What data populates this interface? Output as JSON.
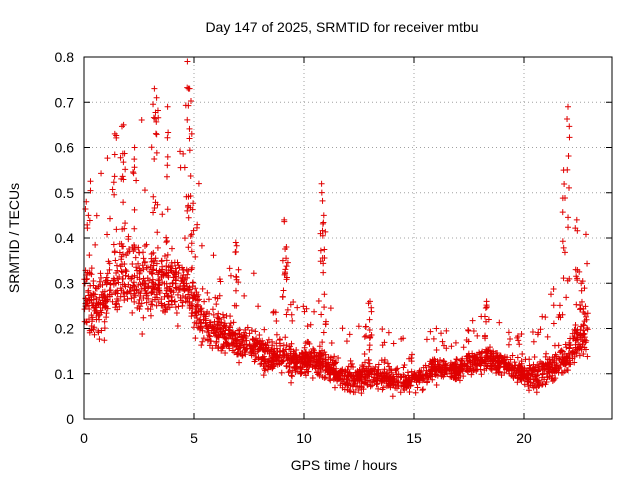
{
  "chart_data": {
    "type": "scatter",
    "title": "Day 147 of 2025, SRMTID for receiver mtbu",
    "xlabel": "GPS time / hours",
    "ylabel": "SRMTID / TECUs",
    "xlim": [
      0,
      24
    ],
    "ylim": [
      0,
      0.8
    ],
    "x_ticks": [
      0,
      5,
      10,
      15,
      20
    ],
    "x_tick_labels": [
      "0",
      "5",
      "10",
      "15",
      "20"
    ],
    "y_ticks": [
      0,
      0.1,
      0.2,
      0.3,
      0.4,
      0.5,
      0.6,
      0.7,
      0.8
    ],
    "y_tick_labels": [
      "0",
      "0.1",
      "0.2",
      "0.3",
      "0.4",
      "0.5",
      "0.6",
      "0.7",
      "0.8"
    ],
    "grid": true,
    "marker": "plus",
    "color": "#e00000",
    "series": [
      {
        "name": "SRMTID",
        "envelope": [
          [
            0.0,
            0.28
          ],
          [
            0.5,
            0.24
          ],
          [
            1.0,
            0.27
          ],
          [
            1.5,
            0.32
          ],
          [
            2.0,
            0.33
          ],
          [
            2.5,
            0.3
          ],
          [
            3.0,
            0.3
          ],
          [
            3.5,
            0.31
          ],
          [
            4.0,
            0.3
          ],
          [
            4.5,
            0.29
          ],
          [
            5.0,
            0.26
          ],
          [
            5.5,
            0.21
          ],
          [
            6.0,
            0.2
          ],
          [
            6.5,
            0.19
          ],
          [
            7.0,
            0.17
          ],
          [
            7.5,
            0.16
          ],
          [
            8.0,
            0.15
          ],
          [
            8.5,
            0.14
          ],
          [
            9.0,
            0.14
          ],
          [
            9.5,
            0.13
          ],
          [
            10.0,
            0.13
          ],
          [
            10.5,
            0.13
          ],
          [
            11.0,
            0.12
          ],
          [
            11.5,
            0.1
          ],
          [
            12.0,
            0.09
          ],
          [
            12.5,
            0.09
          ],
          [
            13.0,
            0.1
          ],
          [
            13.5,
            0.09
          ],
          [
            14.0,
            0.09
          ],
          [
            14.5,
            0.08
          ],
          [
            15.0,
            0.09
          ],
          [
            15.5,
            0.1
          ],
          [
            16.0,
            0.11
          ],
          [
            16.5,
            0.11
          ],
          [
            17.0,
            0.11
          ],
          [
            17.5,
            0.12
          ],
          [
            18.0,
            0.13
          ],
          [
            18.5,
            0.13
          ],
          [
            19.0,
            0.12
          ],
          [
            19.5,
            0.11
          ],
          [
            20.0,
            0.1
          ],
          [
            20.5,
            0.09
          ],
          [
            21.0,
            0.11
          ],
          [
            21.5,
            0.12
          ],
          [
            22.0,
            0.14
          ],
          [
            22.5,
            0.18
          ],
          [
            22.9,
            0.2
          ]
        ],
        "spread": [
          [
            0.0,
            0.1
          ],
          [
            2.0,
            0.14
          ],
          [
            5.0,
            0.1
          ],
          [
            7.0,
            0.06
          ],
          [
            11.0,
            0.05
          ],
          [
            15.0,
            0.04
          ],
          [
            20.0,
            0.04
          ],
          [
            22.9,
            0.08
          ]
        ],
        "coverage_hours": [
          0.0,
          22.9
        ],
        "peaks": [
          {
            "x": 0.2,
            "y": 0.45
          },
          {
            "x": 1.4,
            "y": 0.63
          },
          {
            "x": 1.8,
            "y": 0.65
          },
          {
            "x": 2.3,
            "y": 0.6
          },
          {
            "x": 3.2,
            "y": 0.73
          },
          {
            "x": 3.3,
            "y": 0.71
          },
          {
            "x": 3.8,
            "y": 0.69
          },
          {
            "x": 4.7,
            "y": 0.79
          },
          {
            "x": 4.8,
            "y": 0.73
          },
          {
            "x": 4.9,
            "y": 0.63
          },
          {
            "x": 6.9,
            "y": 0.39
          },
          {
            "x": 9.1,
            "y": 0.44
          },
          {
            "x": 9.2,
            "y": 0.38
          },
          {
            "x": 10.8,
            "y": 0.52
          },
          {
            "x": 10.9,
            "y": 0.45
          },
          {
            "x": 13.0,
            "y": 0.26
          },
          {
            "x": 18.3,
            "y": 0.26
          },
          {
            "x": 21.8,
            "y": 0.55
          },
          {
            "x": 22.0,
            "y": 0.69
          },
          {
            "x": 22.4,
            "y": 0.44
          },
          {
            "x": 22.6,
            "y": 0.3
          }
        ]
      }
    ]
  }
}
